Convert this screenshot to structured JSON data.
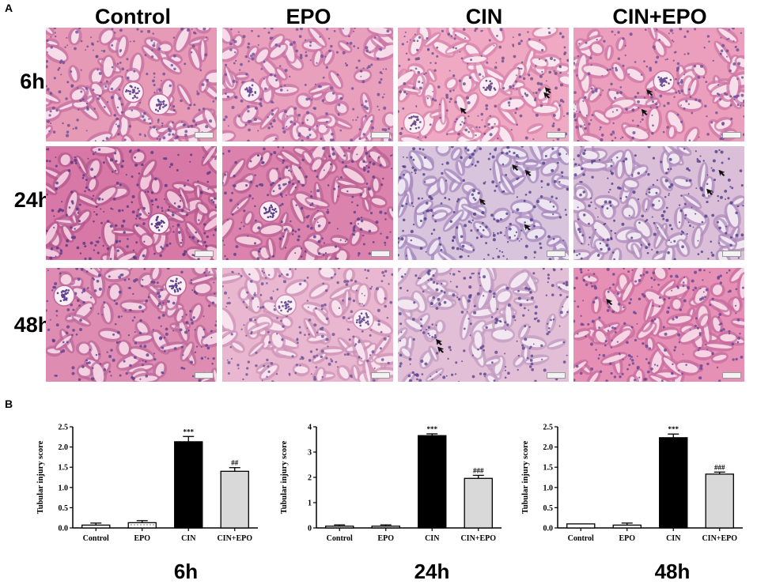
{
  "panelA": {
    "letter": "A",
    "columns": [
      "Control",
      "EPO",
      "CIN",
      "CIN+EPO"
    ],
    "rows": [
      "6h",
      "24h",
      "48h"
    ],
    "tiles": [
      {
        "row": 0,
        "col": 0,
        "base": "#e79ab6",
        "cell": "#c46fa0",
        "lumen": "#fbe6ef",
        "nuclei": "#6b4d95",
        "glom": true,
        "arrows": 0
      },
      {
        "row": 0,
        "col": 1,
        "base": "#e8a0bd",
        "cell": "#c974a6",
        "lumen": "#fbe4ee",
        "nuclei": "#6f4f99",
        "glom": true,
        "arrows": 0
      },
      {
        "row": 0,
        "col": 2,
        "base": "#f0a9c2",
        "cell": "#d884ac",
        "lumen": "#fdf0f4",
        "nuclei": "#6b4f8e",
        "glom": true,
        "arrows": 3
      },
      {
        "row": 0,
        "col": 3,
        "base": "#eb9fbc",
        "cell": "#cd77a6",
        "lumen": "#fbe8ef",
        "nuclei": "#6d4e96",
        "glom": true,
        "arrows": 2
      },
      {
        "row": 1,
        "col": 0,
        "base": "#d878a6",
        "cell": "#b4598f",
        "lumen": "#f6d2e2",
        "nuclei": "#553a86",
        "glom": true,
        "arrows": 0
      },
      {
        "row": 1,
        "col": 1,
        "base": "#dc83ad",
        "cell": "#bb6396",
        "lumen": "#f8dae7",
        "nuclei": "#5b3e8b",
        "glom": true,
        "arrows": 0
      },
      {
        "row": 1,
        "col": 2,
        "base": "#d8c4dc",
        "cell": "#a889bf",
        "lumen": "#f3eef6",
        "nuclei": "#4f3f88",
        "glom": false,
        "arrows": 4
      },
      {
        "row": 1,
        "col": 3,
        "base": "#dbbfd8",
        "cell": "#b08cbe",
        "lumen": "#f5eef5",
        "nuclei": "#503f8a",
        "glom": false,
        "arrows": 2
      },
      {
        "row": 2,
        "col": 0,
        "base": "#de8cb2",
        "cell": "#bd6a9b",
        "lumen": "#f8dce9",
        "nuclei": "#5d418e",
        "glom": true,
        "arrows": 0
      },
      {
        "row": 2,
        "col": 1,
        "base": "#e9b7cf",
        "cell": "#cf93b8",
        "lumen": "#fbeaf2",
        "nuclei": "#6c5296",
        "glom": true,
        "arrows": 0
      },
      {
        "row": 2,
        "col": 2,
        "base": "#e2bfd6",
        "cell": "#c29cc3",
        "lumen": "#f7eef5",
        "nuclei": "#5a4691",
        "glom": false,
        "arrows": 2
      },
      {
        "row": 2,
        "col": 3,
        "base": "#e790b6",
        "cell": "#c86e9f",
        "lumen": "#f9dfea",
        "nuclei": "#654593",
        "glom": false,
        "arrows": 1
      }
    ]
  },
  "panelB": {
    "letter": "B"
  },
  "chart_data": [
    {
      "type": "bar",
      "title": "6h",
      "ylabel": "Tubular injury score",
      "categories": [
        "Control",
        "EPO",
        "CIN",
        "CIN+EPO"
      ],
      "values": [
        0.07,
        0.13,
        2.13,
        1.4
      ],
      "errors": [
        0.05,
        0.05,
        0.13,
        0.09
      ],
      "annotations": [
        "",
        "",
        "***",
        "##"
      ],
      "ylim": [
        0,
        2.5
      ],
      "yticks": [
        "0.0",
        "0.5",
        "1.0",
        "1.5",
        "2.0",
        "2.5"
      ],
      "tickValues": [
        0,
        0.5,
        1.0,
        1.5,
        2.0,
        2.5
      ]
    },
    {
      "type": "bar",
      "title": "24h",
      "ylabel": "Tubular injury score",
      "categories": [
        "Control",
        "EPO",
        "CIN",
        "CIN+EPO"
      ],
      "values": [
        0.07,
        0.07,
        3.65,
        1.96
      ],
      "errors": [
        0.05,
        0.05,
        0.07,
        0.12
      ],
      "annotations": [
        "",
        "",
        "***",
        "###"
      ],
      "ylim": [
        0,
        4
      ],
      "yticks": [
        "0",
        "1",
        "2",
        "3",
        "4"
      ],
      "tickValues": [
        0,
        1,
        2,
        3,
        4
      ]
    },
    {
      "type": "bar",
      "title": "48h",
      "ylabel": "Tubular injury score",
      "categories": [
        "Control",
        "EPO",
        "CIN",
        "CIN+EPO"
      ],
      "values": [
        0.1,
        0.07,
        2.23,
        1.33
      ],
      "errors": [
        0.0,
        0.05,
        0.09,
        0.05
      ],
      "annotations": [
        "",
        "",
        "***",
        "###"
      ],
      "ylim": [
        0,
        2.5
      ],
      "yticks": [
        "0.0",
        "0.5",
        "1.0",
        "1.5",
        "2.0",
        "2.5"
      ],
      "tickValues": [
        0,
        0.5,
        1.0,
        1.5,
        2.0,
        2.5
      ]
    }
  ],
  "barStyles": [
    {
      "fill": "#ffffff",
      "pattern": "none"
    },
    {
      "fill": "#ffffff",
      "pattern": "dots"
    },
    {
      "fill": "#000000",
      "pattern": "none"
    },
    {
      "fill": "#d9d9d9",
      "pattern": "none"
    }
  ]
}
